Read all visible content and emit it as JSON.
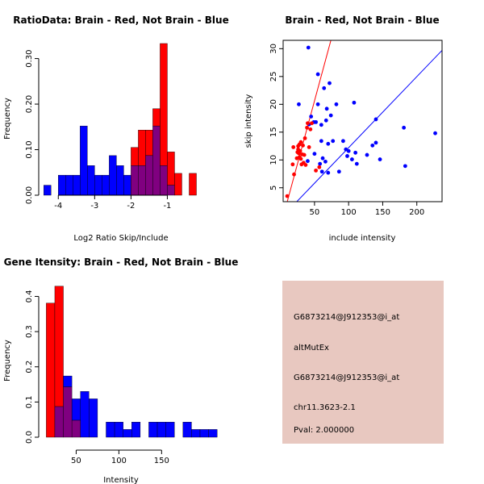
{
  "chart_data": [
    {
      "type": "histogram",
      "title": "RatioData: Brain - Red, Not Brain - Blue",
      "xlabel": "Log2 Ratio Skip/Include",
      "ylabel": "Frequency",
      "xlim": [
        -4.45,
        -0.1
      ],
      "ylim": [
        0,
        0.34
      ],
      "xticks": [
        -4,
        -3,
        -2,
        -1
      ],
      "yticks": [
        0.0,
        0.1,
        0.2,
        0.3
      ],
      "ytick_labels": [
        "0.00",
        "0.10",
        "0.20",
        "0.30"
      ],
      "bin_start": -4.4,
      "bin_width": 0.2,
      "series": [
        {
          "name": "Not Brain",
          "color": "#0000ff",
          "values": [
            0.022,
            0,
            0.044,
            0.044,
            0.044,
            0.152,
            0.065,
            0.044,
            0.044,
            0.087,
            0.065,
            0.044,
            0.065,
            0.065,
            0.087,
            0.152,
            0.065,
            0.022,
            0,
            0,
            0,
            0
          ]
        },
        {
          "name": "Brain",
          "color": "#ff0000",
          "values": [
            0,
            0,
            0,
            0,
            0,
            0,
            0,
            0,
            0,
            0,
            0,
            0,
            0.105,
            0.143,
            0.143,
            0.19,
            0.333,
            0.095,
            0.048,
            0,
            0.048,
            0
          ]
        }
      ],
      "overlap_color": "#800080"
    },
    {
      "type": "scatter",
      "title": "Brain - Red, Not Brain - Blue",
      "xlabel": "include intensity",
      "ylabel": "skip intensity",
      "xlim": [
        4,
        237
      ],
      "ylim": [
        2.5,
        31.5
      ],
      "xticks": [
        50,
        100,
        150,
        200
      ],
      "yticks": [
        5,
        10,
        15,
        20,
        25,
        30
      ],
      "series": [
        {
          "name": "Brain",
          "color": "#ff0000",
          "points": [
            [
              10,
              3.5
            ],
            [
              18,
              9.2
            ],
            [
              19,
              12.3
            ],
            [
              20,
              7.4
            ],
            [
              24,
              10.3
            ],
            [
              25,
              11.4
            ],
            [
              26,
              11.9
            ],
            [
              26,
              12.5
            ],
            [
              27,
              11.2
            ],
            [
              28,
              10.5
            ],
            [
              28,
              12.8
            ],
            [
              29,
              11.6
            ],
            [
              30,
              10.2
            ],
            [
              30,
              13.2
            ],
            [
              31,
              9.2
            ],
            [
              32,
              11
            ],
            [
              33,
              12.6
            ],
            [
              34,
              9.5
            ],
            [
              35,
              10.9
            ],
            [
              36,
              13.9
            ],
            [
              37,
              9.1
            ],
            [
              39,
              15.8
            ],
            [
              40,
              16.6
            ],
            [
              42,
              12.3
            ],
            [
              44,
              15.5
            ],
            [
              46,
              16.6
            ],
            [
              52,
              8.1
            ],
            [
              57,
              8.7
            ]
          ],
          "fit_line": [
            [
              10,
              2.5
            ],
            [
              74,
              31.5
            ]
          ]
        },
        {
          "name": "Not Brain",
          "color": "#0000ff",
          "points": [
            [
              27,
              20
            ],
            [
              41,
              30.2
            ],
            [
              40,
              9.8
            ],
            [
              42,
              16.4
            ],
            [
              45,
              17.8
            ],
            [
              49,
              16.8
            ],
            [
              50,
              11.1
            ],
            [
              52,
              16.8
            ],
            [
              55,
              25.4
            ],
            [
              55,
              20
            ],
            [
              58,
              9.3
            ],
            [
              60,
              13.4
            ],
            [
              60,
              16.3
            ],
            [
              61,
              7.9
            ],
            [
              62,
              10.3
            ],
            [
              64,
              22.9
            ],
            [
              66,
              9.7
            ],
            [
              67,
              17.1
            ],
            [
              68,
              19.2
            ],
            [
              70,
              7.7
            ],
            [
              70,
              12.9
            ],
            [
              72,
              23.8
            ],
            [
              74,
              18
            ],
            [
              77,
              13.4
            ],
            [
              82,
              20
            ],
            [
              86,
              7.9
            ],
            [
              92,
              13.4
            ],
            [
              96,
              11.9
            ],
            [
              98,
              10.7
            ],
            [
              100,
              11.6
            ],
            [
              105,
              10.1
            ],
            [
              108,
              20.3
            ],
            [
              110,
              11.3
            ],
            [
              112,
              9.3
            ],
            [
              127,
              10.9
            ],
            [
              135,
              12.6
            ],
            [
              140,
              17.3
            ],
            [
              140,
              13.1
            ],
            [
              146,
              10.1
            ],
            [
              181,
              15.8
            ],
            [
              183,
              8.9
            ],
            [
              227,
              14.8
            ]
          ],
          "fit_line": [
            [
              24,
              2.5
            ],
            [
              237,
              29.7
            ]
          ]
        }
      ]
    },
    {
      "type": "histogram",
      "title": "Gene Itensity: Brain - Red, Not Brain - Blue",
      "xlabel": "Intensity",
      "ylabel": "Frequency",
      "xlim": [
        9,
        195
      ],
      "ylim": [
        0,
        0.44
      ],
      "xticks": [
        50,
        100,
        150
      ],
      "yticks": [
        0.0,
        0.1,
        0.2,
        0.3,
        0.4
      ],
      "ytick_labels": [
        "0.0",
        "0.1",
        "0.2",
        "0.3",
        "0.4"
      ],
      "bin_start": 15,
      "bin_width": 10,
      "series": [
        {
          "name": "Not Brain",
          "color": "#0000ff",
          "values": [
            0,
            0.087,
            0.174,
            0.109,
            0.13,
            0.109,
            0,
            0.043,
            0.043,
            0.022,
            0.043,
            0,
            0.043,
            0.043,
            0.043,
            0,
            0.043,
            0.022,
            0.022,
            0.022
          ]
        },
        {
          "name": "Brain",
          "color": "#ff0000",
          "values": [
            0.381,
            0.429,
            0.143,
            0.048,
            0,
            0,
            0,
            0,
            0,
            0,
            0,
            0,
            0,
            0,
            0,
            0,
            0,
            0,
            0,
            0
          ]
        }
      ],
      "overlap_color": "#800080"
    }
  ],
  "info_panel": {
    "background": "#e8c8c0",
    "lines": [
      "G6873214@J912353@i_at",
      "altMutEx",
      "G6873214@J912353@i_at",
      "chr11.3623-2.1"
    ],
    "pval": "Pval: 2.000000",
    "pval_color": "#990000"
  }
}
